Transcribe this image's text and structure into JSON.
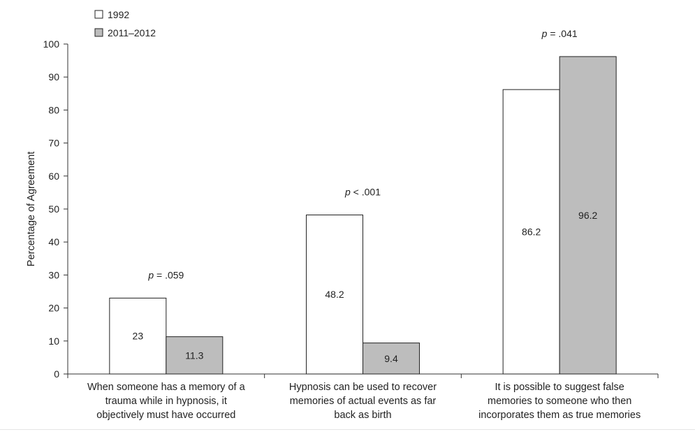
{
  "chart_data": {
    "type": "bar",
    "ylabel": "Percentage of Agreement",
    "ylim": [
      0,
      100
    ],
    "yticks": [
      0,
      10,
      20,
      30,
      40,
      50,
      60,
      70,
      80,
      90,
      100
    ],
    "grid": false,
    "legend_position": "top-left",
    "categories": [
      [
        "When someone has a memory of a",
        "trauma while in hypnosis, it",
        "objectively must have occurred"
      ],
      [
        "Hypnosis can be used to recover",
        "memories of actual events as far",
        "back as birth"
      ],
      [
        "It is possible to suggest false",
        "memories to someone who then",
        "incorporates them as true memories"
      ]
    ],
    "series": [
      {
        "name": "1992",
        "color": "#ffffff",
        "values": [
          23,
          48.2,
          86.2
        ],
        "labels": [
          "23",
          "48.2",
          "86.2"
        ]
      },
      {
        "name": "2011–2012",
        "color": "#bdbdbd",
        "values": [
          11.3,
          9.4,
          96.2
        ],
        "labels": [
          "11.3",
          "9.4",
          "96.2"
        ]
      }
    ],
    "annotations": [
      {
        "prefix": "p",
        "text": " = .059"
      },
      {
        "prefix": "p",
        "text": " < .001"
      },
      {
        "prefix": "p",
        "text": " = .041"
      }
    ]
  }
}
